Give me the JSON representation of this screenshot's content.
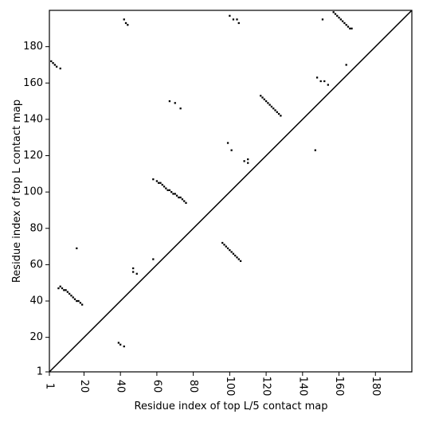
{
  "chart_data": {
    "type": "scatter",
    "marker": "square",
    "color": "#000000",
    "diagonal": true,
    "xlabel": "Residue index of top L/5 contact map",
    "ylabel": "Residue index of top L contact map",
    "xlim": [
      1,
      200
    ],
    "ylim": [
      1,
      200
    ],
    "xticks": [
      1,
      20,
      40,
      60,
      80,
      100,
      120,
      140,
      160,
      180
    ],
    "yticks": [
      1,
      20,
      40,
      60,
      80,
      100,
      120,
      140,
      160,
      180
    ],
    "x": [
      2,
      3,
      4,
      5,
      7,
      42,
      43,
      44,
      100,
      102,
      104,
      105,
      157,
      158,
      159,
      160,
      161,
      162,
      163,
      164,
      165,
      166,
      167,
      151,
      148,
      150,
      152,
      154,
      164,
      67,
      70,
      73,
      117,
      118,
      119,
      120,
      121,
      122,
      123,
      124,
      125,
      126,
      127,
      128,
      99,
      101,
      108,
      110,
      110,
      147,
      58,
      60,
      61,
      62,
      63,
      64,
      65,
      66,
      67,
      68,
      69,
      70,
      71,
      72,
      73,
      74,
      75,
      76,
      58,
      47,
      47,
      49,
      16,
      96,
      97,
      98,
      99,
      100,
      101,
      102,
      103,
      104,
      105,
      106,
      6,
      7,
      8,
      9,
      10,
      11,
      12,
      13,
      14,
      15,
      16,
      17,
      18,
      19,
      39,
      40,
      42
    ],
    "y": [
      172,
      171,
      170,
      169,
      168,
      195,
      193,
      192,
      197,
      195,
      195,
      193,
      199,
      198,
      197,
      196,
      195,
      194,
      193,
      192,
      191,
      190,
      190,
      195,
      163,
      161,
      161,
      159,
      170,
      150,
      149,
      146,
      153,
      152,
      151,
      150,
      149,
      148,
      147,
      146,
      145,
      144,
      143,
      142,
      127,
      123,
      117,
      116,
      118,
      123,
      107,
      106,
      105,
      105,
      104,
      103,
      102,
      101,
      101,
      100,
      99,
      99,
      98,
      97,
      97,
      96,
      95,
      94,
      63,
      58,
      56,
      55,
      69,
      72,
      71,
      70,
      69,
      68,
      67,
      66,
      65,
      64,
      63,
      62,
      47,
      48,
      47,
      46,
      46,
      45,
      44,
      43,
      42,
      41,
      40,
      40,
      39,
      38,
      17,
      16,
      15
    ]
  }
}
